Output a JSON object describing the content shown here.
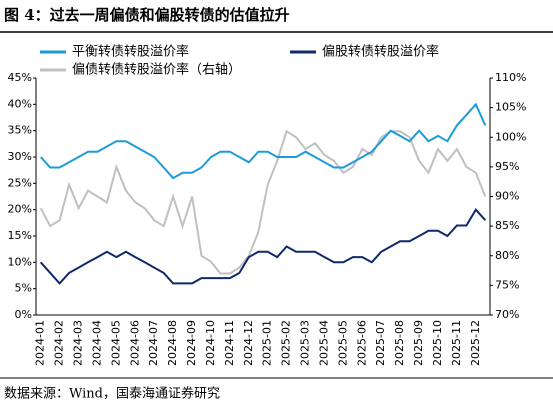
{
  "chart_data": {
    "type": "line",
    "title": "图 4：过去一周偏债和偏股转债的估值拉升",
    "source": "数据来源：Wind，国泰海通证券研究",
    "categories": [
      "2024-01",
      null,
      "2024-02",
      null,
      "2024-03",
      null,
      "2024-04",
      null,
      "2024-05",
      null,
      "2024-06",
      null,
      "2024-07",
      null,
      "2024-08",
      null,
      "2024-09",
      null,
      "2024-10",
      null,
      "2024-11",
      null,
      "2024-12",
      null,
      "2025-01",
      null,
      "2025-02",
      null,
      "2025-03",
      null,
      "2025-04",
      null,
      "2025-05",
      null,
      "2025-06",
      null,
      "2025-07",
      null,
      "2025-08",
      null,
      "2025-09",
      null,
      "2025-10",
      null,
      "2025-11",
      null,
      "2025-12",
      null
    ],
    "series": [
      {
        "name": "平衡转债转股溢价率",
        "color": "#1e9bd7",
        "values": [
          30,
          28,
          28,
          29,
          30,
          31,
          31,
          32,
          33,
          33,
          32,
          31,
          30,
          28,
          26,
          27,
          27,
          28,
          30,
          31,
          31,
          30,
          29,
          31,
          31,
          30,
          30,
          30,
          31,
          30,
          29,
          28,
          28,
          29,
          30,
          31,
          33,
          35,
          34,
          33,
          35,
          33,
          34,
          33,
          36,
          38,
          40,
          36
        ]
      },
      {
        "name": "偏股转债转股溢价率",
        "color": "#0d2a6b",
        "values": [
          10,
          8,
          6,
          8,
          9,
          10,
          11,
          12,
          11,
          12,
          11,
          10,
          9,
          8,
          6,
          6,
          6,
          7,
          7,
          7,
          7,
          8,
          11,
          12,
          12,
          11,
          13,
          12,
          12,
          12,
          11,
          10,
          10,
          11,
          11,
          10,
          12,
          13,
          14,
          14,
          15,
          16,
          16,
          15,
          17,
          17,
          20,
          18
        ]
      },
      {
        "name": "偏债转债转股溢价率（右轴）",
        "color": "#c0c0c0",
        "axis": "y2",
        "values": [
          88,
          85,
          86,
          92,
          88,
          91,
          90,
          89,
          95,
          91,
          89,
          88,
          86,
          85,
          90,
          85,
          90,
          80,
          79,
          77,
          77,
          78,
          80,
          84,
          92,
          96,
          101,
          100,
          98,
          99,
          97,
          96,
          94,
          95,
          98,
          97,
          100,
          101,
          101,
          100,
          96,
          94,
          98,
          96,
          98,
          95,
          94,
          90
        ]
      }
    ],
    "ylim": [
      0,
      45
    ],
    "yticks": [
      {
        "value": 0,
        "label": "0%"
      },
      {
        "value": 5,
        "label": "5%"
      },
      {
        "value": 10,
        "label": "10%"
      },
      {
        "value": 15,
        "label": "15%"
      },
      {
        "value": 20,
        "label": "20%"
      },
      {
        "value": 25,
        "label": "25%"
      },
      {
        "value": 30,
        "label": "30%"
      },
      {
        "value": 35,
        "label": "35%"
      },
      {
        "value": 40,
        "label": "40%"
      },
      {
        "value": 45,
        "label": "45%"
      }
    ],
    "y2lim": [
      70,
      110
    ],
    "y2ticks": [
      {
        "value": 70,
        "label": "70%"
      },
      {
        "value": 75,
        "label": "75%"
      },
      {
        "value": 80,
        "label": "80%"
      },
      {
        "value": 85,
        "label": "85%"
      },
      {
        "value": 90,
        "label": "90%"
      },
      {
        "value": 95,
        "label": "95%"
      },
      {
        "value": 100,
        "label": "100%"
      },
      {
        "value": 105,
        "label": "105%"
      },
      {
        "value": 110,
        "label": "110%"
      }
    ],
    "grid": false
  }
}
